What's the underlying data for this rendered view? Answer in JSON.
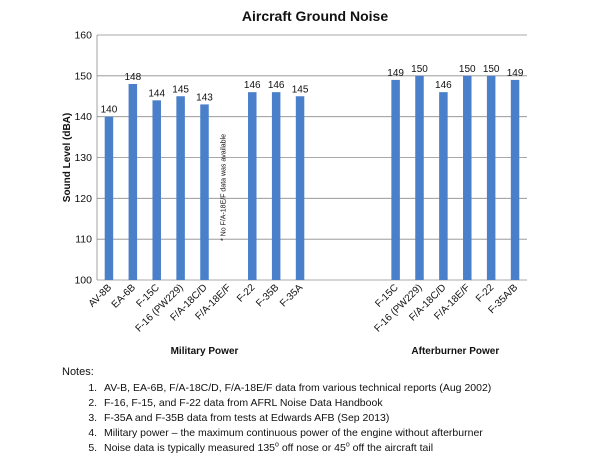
{
  "chart_data": {
    "type": "bar",
    "title": "Aircraft Ground Noise",
    "ylabel": "Sound Level (dBA)",
    "ylim": [
      100,
      160
    ],
    "yticks": [
      100,
      110,
      120,
      130,
      140,
      150,
      160
    ],
    "grid": true,
    "bar_color": "#4a7fc9",
    "groups": [
      {
        "label": "Military Power",
        "categories": [
          "AV-8B",
          "EA-6B",
          "F-15C",
          "F-16 (PW229)",
          "F/A-18C/D",
          "F/A-18E/F",
          "F-22",
          "F-35B",
          "F-35A"
        ],
        "values": [
          140,
          148,
          144,
          145,
          143,
          null,
          146,
          146,
          145
        ],
        "annotation": "* No F/A-18E/F data was available"
      },
      {
        "label": "Afterburner Power",
        "categories": [
          "F-15C",
          "F-16 (PW229)",
          "F/A-18C/D",
          "F/A-18E/F",
          "F-22",
          "F-35A/B"
        ],
        "values": [
          149,
          150,
          146,
          150,
          150,
          149
        ]
      }
    ]
  },
  "notes": {
    "title": "Notes:",
    "items": [
      "AV-B, EA-6B, F/A-18C/D, F/A-18E/F data from various technical reports (Aug 2002)",
      "F-16, F-15, and F-22 data from AFRL Noise Data Handbook",
      "F-35A and F-35B data from tests at Edwards AFB (Sep 2013)",
      "Military power – the maximum continuous power of the engine without afterburner"
    ],
    "last_item": {
      "part1": "Noise data is typically measured 135",
      "sup1": "o",
      "part2": " off nose or 45",
      "sup2": "o",
      "part3": " off the aircraft tail"
    }
  }
}
